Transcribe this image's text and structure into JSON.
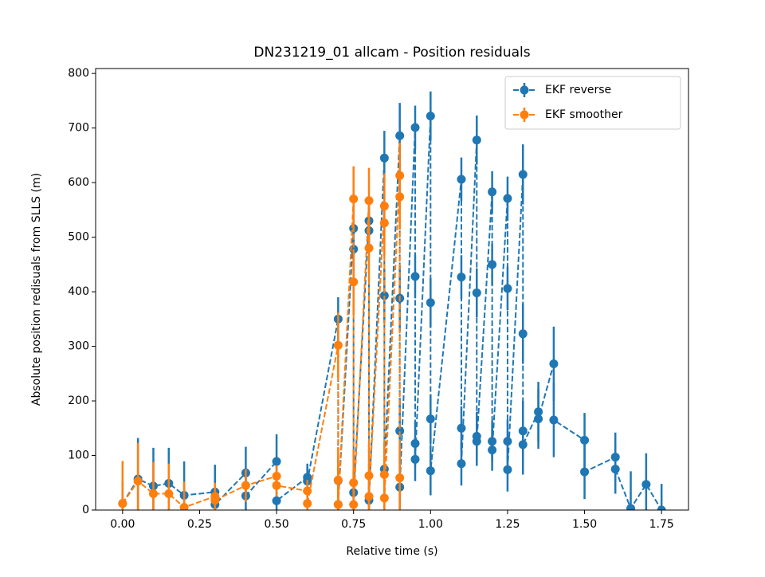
{
  "chart_data": {
    "type": "errorbar",
    "title": "DN231219_01 allcam - Position residuals",
    "xlabel": "Relative time (s)",
    "ylabel": "Absolute position redisuals from SLLS (m)",
    "xlim": [
      -0.0875,
      1.8375
    ],
    "ylim": [
      0,
      809
    ],
    "xticks": [
      {
        "value": 0,
        "label": "0.00"
      },
      {
        "value": 0.25,
        "label": "0.25"
      },
      {
        "value": 0.5,
        "label": "0.50"
      },
      {
        "value": 0.75,
        "label": "0.75"
      },
      {
        "value": 1,
        "label": "1.00"
      },
      {
        "value": 1.25,
        "label": "1.25"
      },
      {
        "value": 1.5,
        "label": "1.50"
      },
      {
        "value": 1.75,
        "label": "1.75"
      }
    ],
    "yticks": [
      0,
      100,
      200,
      300,
      400,
      500,
      600,
      700,
      800
    ],
    "legend": "upper right",
    "series": [
      {
        "name": "EKF reverse",
        "color": "#1f77b4",
        "x": [
          0,
          0.05,
          0.1,
          0.15,
          0.2,
          0.3,
          0.3,
          0.4,
          0.4,
          0.5,
          0.5,
          0.6,
          0.6,
          0.7,
          0.7,
          0.7,
          0.75,
          0.75,
          0.75,
          0.8,
          0.8,
          0.8,
          0.85,
          0.85,
          0.85,
          0.9,
          0.9,
          0.9,
          0.9,
          0.95,
          0.95,
          0.95,
          0.95,
          1.0,
          1.0,
          1.0,
          1.0,
          1.1,
          1.1,
          1.1,
          1.1,
          1.15,
          1.15,
          1.15,
          1.15,
          1.2,
          1.2,
          1.2,
          1.2,
          1.25,
          1.25,
          1.25,
          1.25,
          1.3,
          1.3,
          1.3,
          1.3,
          1.35,
          1.35,
          1.4,
          1.4,
          1.5,
          1.5,
          1.6,
          1.6,
          1.65,
          1.7,
          1.75
        ],
        "values": [
          12,
          57,
          44,
          49,
          27,
          33,
          10,
          68,
          26,
          89,
          17,
          60,
          53,
          350,
          54,
          10,
          516,
          478,
          32,
          530,
          512,
          18,
          645,
          393,
          75,
          686,
          388,
          145,
          42,
          701,
          428,
          122,
          93,
          722,
          380,
          167,
          72,
          606,
          427,
          150,
          85,
          678,
          398,
          135,
          126,
          583,
          450,
          126,
          110,
          571,
          406,
          126,
          74,
          615,
          323,
          145,
          120,
          180,
          167,
          268,
          165,
          128,
          70,
          97,
          75,
          3,
          47,
          0
        ],
        "yerr": [
          40,
          75,
          70,
          65,
          62,
          50,
          50,
          48,
          48,
          50,
          50,
          25,
          25,
          40,
          40,
          40,
          40,
          40,
          40,
          40,
          40,
          40,
          50,
          50,
          50,
          60,
          60,
          60,
          60,
          40,
          40,
          40,
          40,
          45,
          45,
          45,
          45,
          40,
          40,
          40,
          40,
          45,
          45,
          45,
          45,
          38,
          38,
          38,
          38,
          40,
          40,
          40,
          40,
          55,
          55,
          55,
          55,
          55,
          55,
          68,
          68,
          50,
          50,
          45,
          45,
          68,
          57,
          48
        ]
      },
      {
        "name": "EKF smoother",
        "color": "#ff7f0e",
        "x": [
          0,
          0.05,
          0.1,
          0.15,
          0.2,
          0.3,
          0.3,
          0.4,
          0.5,
          0.5,
          0.6,
          0.6,
          0.7,
          0.7,
          0.7,
          0.75,
          0.75,
          0.75,
          0.75,
          0.8,
          0.8,
          0.8,
          0.8,
          0.85,
          0.85,
          0.85,
          0.85,
          0.9,
          0.9,
          0.9
        ],
        "values": [
          12,
          53,
          30,
          30,
          5,
          25,
          18,
          45,
          62,
          45,
          35,
          12,
          302,
          55,
          10,
          570,
          418,
          50,
          10,
          567,
          480,
          63,
          25,
          557,
          526,
          65,
          22,
          613,
          574,
          59
        ],
        "yerr": [
          78,
          70,
          58,
          55,
          47,
          25,
          25,
          30,
          20,
          20,
          20,
          20,
          60,
          60,
          60,
          60,
          60,
          60,
          60,
          60,
          60,
          60,
          60,
          60,
          60,
          60,
          60,
          60,
          60,
          60
        ]
      }
    ]
  }
}
